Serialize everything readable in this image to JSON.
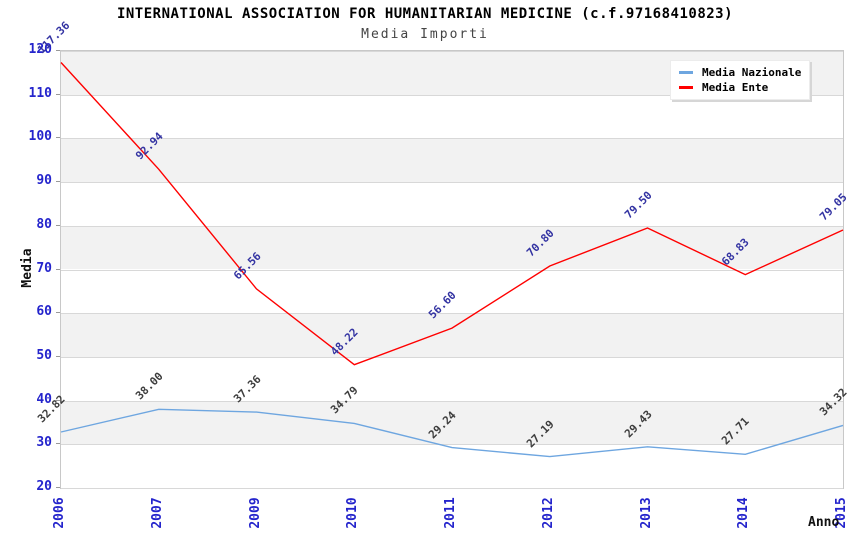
{
  "chart_data": {
    "type": "line",
    "title": "INTERNATIONAL ASSOCIATION FOR HUMANITARIAN MEDICINE (c.f.97168410823)",
    "subtitle": "Media Importi",
    "xlabel": "Anno",
    "ylabel": "Media",
    "categories": [
      "2006",
      "2007",
      "2009",
      "2010",
      "2011",
      "2012",
      "2013",
      "2014",
      "2015"
    ],
    "ylim": [
      20,
      120
    ],
    "ytick_step": 10,
    "grid": "horizontal-bands-alternating",
    "legend_position": "top-right",
    "series": [
      {
        "name": "Media Nazionale",
        "color": "#6ea6e0",
        "label_color": "#3d3d3d",
        "values": [
          32.82,
          38.0,
          37.36,
          34.79,
          29.24,
          27.19,
          29.43,
          27.71,
          34.32
        ]
      },
      {
        "name": "Media Ente",
        "color": "#ff0000",
        "label_color": "#3333a2",
        "values": [
          117.36,
          92.94,
          65.56,
          48.22,
          56.6,
          70.8,
          79.5,
          68.83,
          79.05
        ]
      }
    ]
  },
  "colors": {
    "tick_label": "#2424cc",
    "band_fill": "#f2f2f2",
    "grid_line": "#d8d8d8",
    "plot_border": "#c8c8c8",
    "title": "#000000",
    "subtitle": "#444444",
    "legend_background": "#ffffff"
  }
}
